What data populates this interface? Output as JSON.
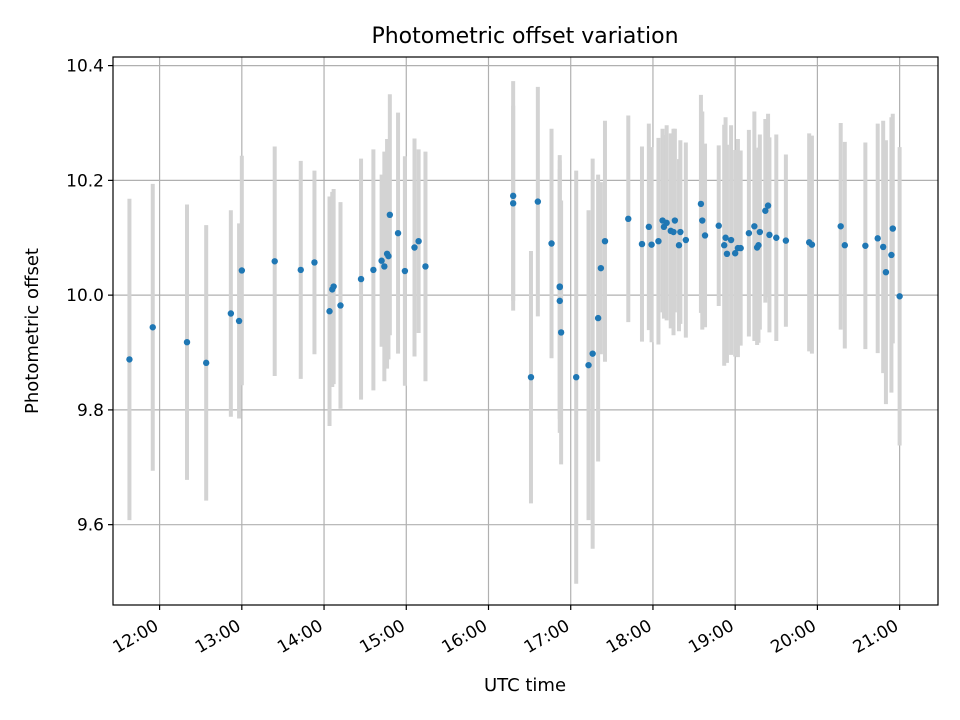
{
  "chart_data": {
    "type": "scatter",
    "title": "Photometric offset variation",
    "xlabel": "UTC time",
    "ylabel": "Photometric offset",
    "x_ticks": [
      "12:00",
      "13:00",
      "14:00",
      "15:00",
      "16:00",
      "17:00",
      "18:00",
      "19:00",
      "20:00",
      "21:00"
    ],
    "x_range": [
      "11:26",
      "21:28"
    ],
    "y_ticks": [
      9.6,
      9.8,
      10.0,
      10.2,
      10.4
    ],
    "ylim": [
      9.46,
      10.415
    ],
    "grid": true,
    "legend": "none",
    "colors": {
      "marker": "#1f77b4",
      "errorbar": "#d3d3d3",
      "grid": "#b0b0b0"
    },
    "series": [
      {
        "x": [
          "11:38",
          "11:55",
          "12:20",
          "12:34",
          "12:52",
          "12:58",
          "13:00",
          "13:24",
          "13:43",
          "13:53",
          "14:04",
          "14:06",
          "14:07",
          "14:12",
          "14:27",
          "14:36",
          "14:42",
          "14:44",
          "14:46",
          "14:47",
          "14:48",
          "14:54",
          "14:59",
          "15:06",
          "15:09",
          "15:14",
          "16:18",
          "16:18",
          "16:31",
          "16:36",
          "16:46",
          "16:52",
          "16:52",
          "16:52",
          "16:53",
          "17:04",
          "17:13",
          "17:16",
          "17:20",
          "17:22",
          "17:25",
          "17:42",
          "17:52",
          "17:57",
          "17:59",
          "18:04",
          "18:07",
          "18:08",
          "18:10",
          "18:13",
          "18:15",
          "18:16",
          "18:19",
          "18:20",
          "18:24",
          "18:35",
          "18:36",
          "18:38",
          "18:48",
          "18:52",
          "18:53",
          "18:54",
          "18:57",
          "19:00",
          "19:02",
          "19:04",
          "19:10",
          "19:14",
          "19:16",
          "19:17",
          "19:18",
          "19:22",
          "19:24",
          "19:25",
          "19:30",
          "19:37",
          "19:54",
          "19:56",
          "20:17",
          "20:20",
          "20:35",
          "20:44",
          "20:48",
          "20:50",
          "20:54",
          "20:55",
          "21:00"
        ],
        "y": [
          9.888,
          9.944,
          9.918,
          9.882,
          9.968,
          9.955,
          10.043,
          10.059,
          10.044,
          10.057,
          9.972,
          10.01,
          10.015,
          9.982,
          10.028,
          10.044,
          10.06,
          10.05,
          10.072,
          10.068,
          10.14,
          10.108,
          10.042,
          10.083,
          10.094,
          10.05,
          10.16,
          10.173,
          9.857,
          10.163,
          10.09,
          9.99,
          10.014,
          10.015,
          9.935,
          9.857,
          9.878,
          9.898,
          9.96,
          10.047,
          10.094,
          10.133,
          10.089,
          10.119,
          10.088,
          10.094,
          10.13,
          10.119,
          10.126,
          10.112,
          10.11,
          10.13,
          10.087,
          10.11,
          10.096,
          10.159,
          10.13,
          10.104,
          10.121,
          10.087,
          10.1,
          10.072,
          10.096,
          10.073,
          10.082,
          10.082,
          10.108,
          10.12,
          10.083,
          10.087,
          10.11,
          10.147,
          10.156,
          10.105,
          10.1,
          10.095,
          10.092,
          10.088,
          10.12,
          10.087,
          10.086,
          10.099,
          10.084,
          10.04,
          10.07,
          10.116,
          9.998
        ],
        "yerr": [
          0.28,
          0.25,
          0.24,
          0.24,
          0.18,
          0.17,
          0.2,
          0.2,
          0.19,
          0.16,
          0.2,
          0.17,
          0.17,
          0.18,
          0.21,
          0.21,
          0.15,
          0.2,
          0.2,
          0.18,
          0.21,
          0.21,
          0.2,
          0.19,
          0.16,
          0.2,
          0.17,
          0.2,
          0.22,
          0.2,
          0.2,
          0.23,
          0.23,
          0.22,
          0.23,
          0.36,
          0.27,
          0.34,
          0.25,
          0.15,
          0.21,
          0.18,
          0.17,
          0.18,
          0.17,
          0.18,
          0.16,
          0.16,
          0.17,
          0.17,
          0.18,
          0.16,
          0.15,
          0.16,
          0.17,
          0.19,
          0.19,
          0.16,
          0.14,
          0.21,
          0.21,
          0.19,
          0.2,
          0.18,
          0.19,
          0.17,
          0.18,
          0.2,
          0.17,
          0.17,
          0.17,
          0.16,
          0.16,
          0.17,
          0.18,
          0.15,
          0.19,
          0.19,
          0.18,
          0.18,
          0.18,
          0.2,
          0.22,
          0.23,
          0.24,
          0.2,
          0.26
        ]
      }
    ]
  }
}
